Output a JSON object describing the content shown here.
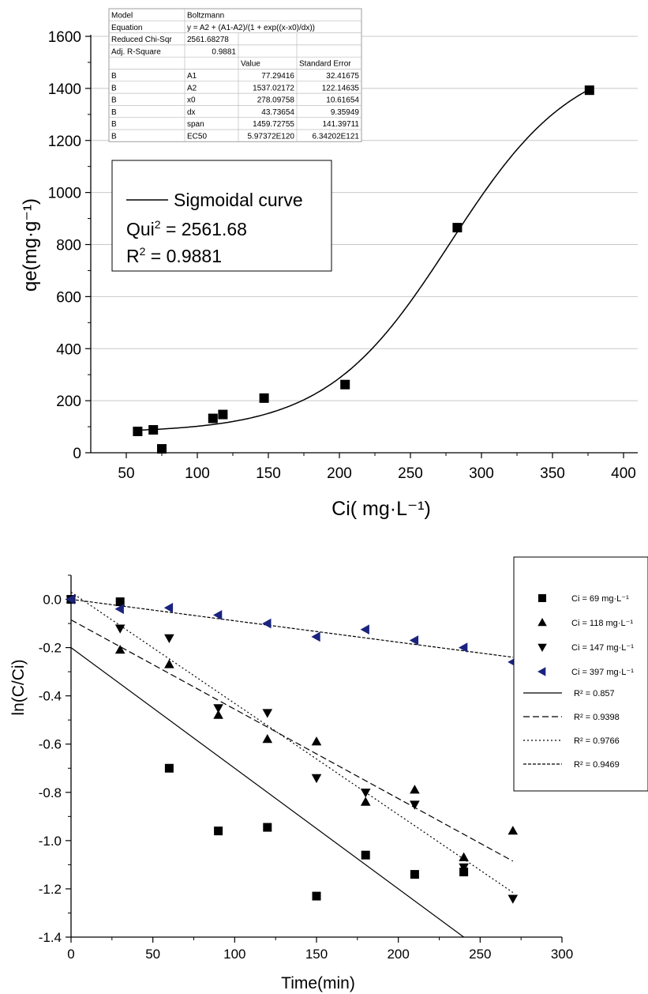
{
  "chart_data": [
    {
      "type": "scatter",
      "xlabel": "Ci( mg·L⁻¹)",
      "ylabel": "qe(mg·g⁻¹)",
      "xlim": [
        25,
        410
      ],
      "ylim": [
        0,
        1600
      ],
      "x_ticks": [
        50,
        100,
        150,
        200,
        250,
        300,
        350,
        400
      ],
      "y_ticks": [
        0,
        200,
        400,
        600,
        800,
        1000,
        1200,
        1400,
        1600
      ],
      "grid": "horizontal",
      "series": [
        {
          "x": [
            58,
            69,
            75,
            111,
            118,
            147,
            204,
            283,
            376
          ],
          "y": [
            82,
            88,
            15,
            132,
            147,
            210,
            262,
            865,
            1393
          ],
          "marker": "square",
          "color": "#000000"
        }
      ],
      "fit": {
        "model": "Boltzmann",
        "A1": 77.29416,
        "A2": 1537.02172,
        "x0": 278.09758,
        "dx": 43.73654,
        "x_range": [
          58,
          376
        ]
      },
      "stats_table": {
        "rows": [
          [
            "Model",
            "Boltzmann",
            "",
            ""
          ],
          [
            "Equation",
            "y = A2 + (A1-A2)/(1 + exp((x-x0)/dx))",
            "",
            ""
          ],
          [
            "Reduced Chi-Sqr",
            "2561.68278",
            "",
            ""
          ],
          [
            "Adj. R-Square",
            "0.9881",
            "",
            ""
          ],
          [
            "",
            "",
            "Value",
            "Standard Error"
          ],
          [
            "B",
            "A1",
            "77.29416",
            "32.41675"
          ],
          [
            "B",
            "A2",
            "1537.02172",
            "122.14635"
          ],
          [
            "B",
            "x0",
            "278.09758",
            "10.61654"
          ],
          [
            "B",
            "dx",
            "43.73654",
            "9.35949"
          ],
          [
            "B",
            "span",
            "1459.72755",
            "141.39711"
          ],
          [
            "B",
            "EC50",
            "5.97372E120",
            "6.34202E121"
          ]
        ]
      },
      "legend": {
        "curve_label": "Sigmoidal curve",
        "chi_label": "Qui",
        "chi_sup": "2",
        "chi_value": " = 2561.68",
        "r_label": "R",
        "r_sup": "2",
        "r_value": " = 0.9881"
      }
    },
    {
      "type": "scatter",
      "xlabel": "Time(min)",
      "ylabel": "ln(C/Ci)",
      "xlim": [
        0,
        300
      ],
      "ylim": [
        -1.4,
        0.1
      ],
      "x_ticks": [
        0,
        50,
        100,
        150,
        200,
        250,
        300
      ],
      "y_ticks": [
        0.0,
        -0.2,
        -0.4,
        -0.6,
        -0.8,
        -1.0,
        -1.2,
        -1.4
      ],
      "y_tick_labels": [
        "0.0",
        "-0.2",
        "-0.4",
        "-0.6",
        "-0.8",
        "-1.0",
        "-1.2",
        "-1.4"
      ],
      "grid": "none",
      "series": [
        {
          "name": "Ci = 69 mg·L⁻¹",
          "marker": "square",
          "color": "#000000",
          "x": [
            0,
            30,
            60,
            90,
            120,
            150,
            180,
            210,
            240
          ],
          "y": [
            0.0,
            -0.01,
            -0.7,
            -0.96,
            -0.945,
            -1.23,
            -1.06,
            -1.14,
            -1.13
          ]
        },
        {
          "name": "Ci = 118 mg·L⁻¹",
          "marker": "triangle-up",
          "color": "#000000",
          "x": [
            0,
            30,
            60,
            90,
            120,
            150,
            180,
            210,
            240,
            270
          ],
          "y": [
            0.0,
            -0.21,
            -0.27,
            -0.48,
            -0.58,
            -0.59,
            -0.84,
            -0.79,
            -1.07,
            -0.96
          ]
        },
        {
          "name": "Ci = 147 mg·L⁻¹",
          "marker": "triangle-down",
          "color": "#000000",
          "x": [
            0,
            30,
            60,
            90,
            120,
            150,
            180,
            210,
            240,
            270
          ],
          "y": [
            0.0,
            -0.12,
            -0.16,
            -0.45,
            -0.47,
            -0.74,
            -0.8,
            -0.85,
            -1.11,
            -1.24
          ]
        },
        {
          "name": "Ci = 397 mg·L⁻¹",
          "marker": "triangle-left",
          "color": "#1a237e",
          "x": [
            0,
            30,
            60,
            90,
            120,
            150,
            180,
            210,
            240,
            270
          ],
          "y": [
            0.0,
            -0.04,
            -0.035,
            -0.065,
            -0.1,
            -0.155,
            -0.125,
            -0.17,
            -0.2,
            -0.26
          ]
        }
      ],
      "fits": [
        {
          "label": "R² = 0.857",
          "dash": "solid",
          "x": [
            0,
            240
          ],
          "y": [
            -0.2,
            -1.4
          ]
        },
        {
          "label": "R² = 0.9398",
          "dash": "dashed",
          "x": [
            0,
            270
          ],
          "y": [
            -0.085,
            -1.085
          ]
        },
        {
          "label": "R² = 0.9766",
          "dash": "dotted",
          "x": [
            0,
            270
          ],
          "y": [
            0.03,
            -1.215
          ]
        },
        {
          "label": "R² = 0.9469",
          "dash": "short-dash",
          "x": [
            0,
            270
          ],
          "y": [
            0.0,
            -0.24
          ]
        }
      ],
      "legend_placement": "right"
    }
  ]
}
